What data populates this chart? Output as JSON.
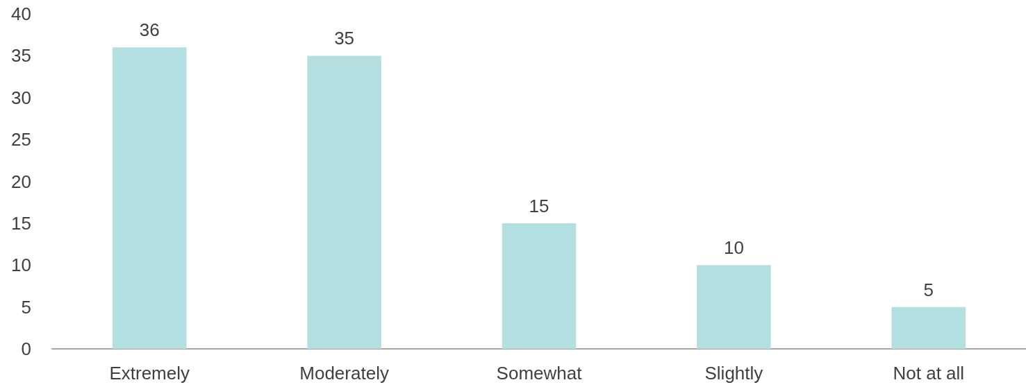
{
  "chart_data": {
    "type": "bar",
    "categories": [
      "Extremely",
      "Moderately",
      "Somewhat",
      "Slightly",
      "Not at all"
    ],
    "values": [
      36,
      35,
      15,
      10,
      5
    ],
    "color": "#b3dfe0",
    "ylim": [
      0,
      40
    ],
    "yticks": [
      0,
      5,
      10,
      15,
      20,
      25,
      30,
      35,
      40
    ],
    "grid": false,
    "data_labels": true
  }
}
